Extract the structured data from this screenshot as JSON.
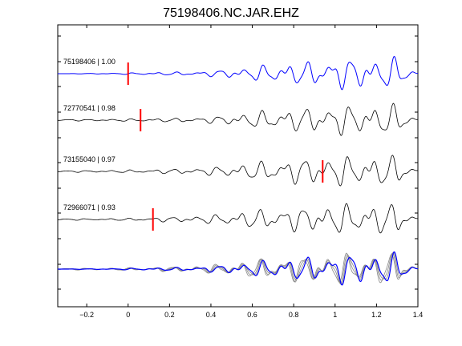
{
  "chart_data": {
    "type": "line",
    "title": "75198406.NC.JAR.EHZ",
    "xlabel": "",
    "ylabel": "",
    "xlim": [
      -0.34,
      1.4
    ],
    "x_ticks": [
      -0.2,
      0,
      0.2,
      0.4,
      0.6,
      0.8,
      1,
      1.2,
      1.4
    ],
    "x_tick_labels": [
      "−0.2",
      "0",
      "0.2",
      "0.4",
      "0.6",
      "0.8",
      "1",
      "1.2",
      "1.4"
    ],
    "grid": false,
    "series": [
      {
        "name": "75198406 | 1.00",
        "color": "#0000ff",
        "pick_time": 0.0,
        "x": [
          -0.34,
          -0.2,
          -0.1,
          0,
          0.1,
          0.2,
          0.3,
          0.4,
          0.5,
          0.6,
          0.7,
          0.8,
          0.9,
          1.0,
          1.1,
          1.2,
          1.25,
          1.3,
          1.35,
          1.4
        ],
        "y": [
          0.0,
          0.02,
          0.03,
          0.05,
          0.08,
          0.1,
          0.12,
          0.18,
          0.3,
          0.45,
          0.6,
          0.7,
          0.78,
          1.0,
          0.95,
          1.0,
          1.0,
          1.0,
          0.4,
          0.2
        ]
      },
      {
        "name": "72770541 | 0.98",
        "color": "#000000",
        "pick_time": 0.06,
        "x": [
          -0.34,
          -0.2,
          -0.1,
          0,
          0.1,
          0.2,
          0.3,
          0.4,
          0.5,
          0.6,
          0.7,
          0.8,
          0.9,
          1.0,
          1.1,
          1.2,
          1.25,
          1.3,
          1.35,
          1.4
        ],
        "y": [
          0.05,
          0.05,
          0.06,
          0.08,
          0.1,
          0.12,
          0.15,
          0.2,
          0.35,
          0.5,
          0.65,
          0.72,
          0.8,
          1.0,
          0.9,
          0.95,
          1.0,
          0.95,
          0.45,
          0.2
        ]
      },
      {
        "name": "73155040 | 0.97",
        "color": "#000000",
        "pick_time": 0.94,
        "x": [
          -0.34,
          -0.2,
          -0.1,
          0,
          0.1,
          0.2,
          0.3,
          0.4,
          0.5,
          0.6,
          0.7,
          0.8,
          0.9,
          1.0,
          1.1,
          1.2,
          1.25,
          1.3,
          1.35,
          1.4
        ],
        "y": [
          0.05,
          0.06,
          0.07,
          0.09,
          0.12,
          0.15,
          0.18,
          0.25,
          0.4,
          0.55,
          0.7,
          0.8,
          0.85,
          1.0,
          0.9,
          0.95,
          1.0,
          0.95,
          0.45,
          0.2
        ]
      },
      {
        "name": "72966071 | 0.93",
        "color": "#000000",
        "pick_time": 0.12,
        "x": [
          -0.34,
          -0.2,
          -0.1,
          0,
          0.1,
          0.2,
          0.3,
          0.4,
          0.5,
          0.6,
          0.7,
          0.8,
          0.9,
          1.0,
          1.1,
          1.2,
          1.25,
          1.3,
          1.35,
          1.4
        ],
        "y": [
          0.05,
          0.05,
          0.06,
          0.08,
          0.12,
          0.16,
          0.2,
          0.28,
          0.42,
          0.58,
          0.7,
          0.75,
          0.82,
          1.0,
          0.92,
          0.98,
          1.0,
          0.95,
          0.45,
          0.2
        ]
      }
    ],
    "stack": {
      "colors": [
        "#0000ff",
        "#888888",
        "#888888",
        "#888888"
      ]
    }
  }
}
